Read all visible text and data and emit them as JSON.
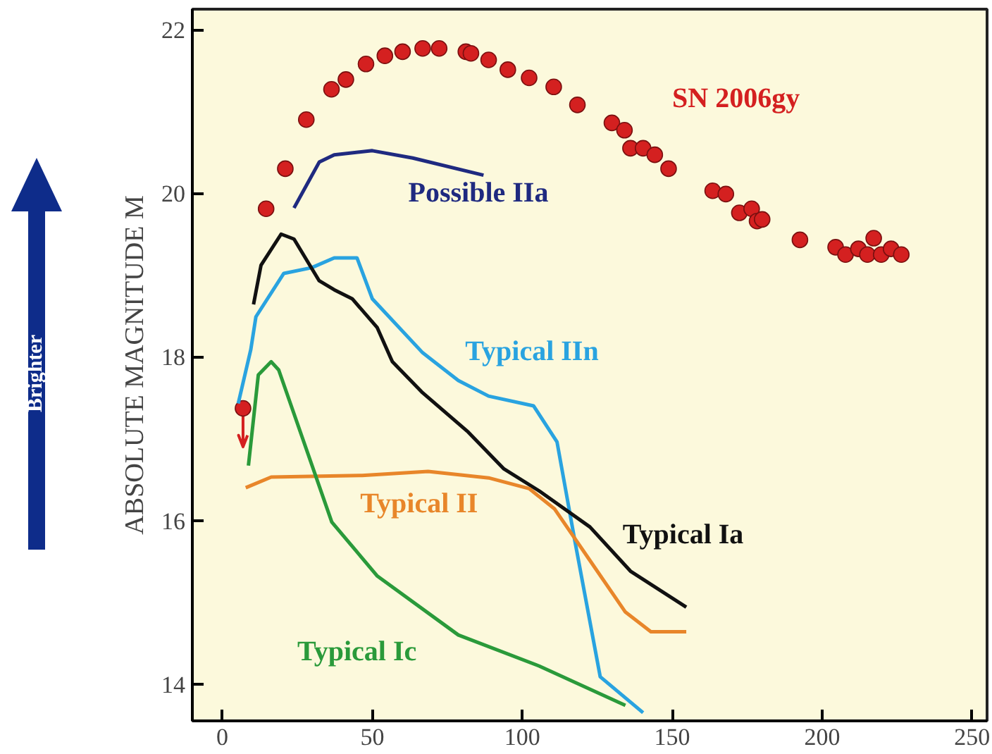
{
  "chart_data": {
    "type": "line",
    "ylabel": "ABSOLUTE MAGNITUDE M",
    "xlim": [
      -10,
      255
    ],
    "ylim": [
      13.55,
      22.25
    ],
    "xticks": [
      0,
      50,
      100,
      150,
      200,
      250
    ],
    "yticks": [
      14,
      16,
      18,
      20,
      22
    ],
    "grid": false,
    "line_style": "solid",
    "marker": "none",
    "annotations": [
      "Brighter"
    ],
    "series": [
      {
        "name": "SN 2006gy",
        "type": "scatter",
        "marker": "circle",
        "color": "#d42020",
        "x": [
          6.9,
          14.6,
          21,
          28,
          36.4,
          41.2,
          47.9,
          54.2,
          60.1,
          66.8,
          72.3,
          81.2,
          82.9,
          88.8,
          95.2,
          102.3,
          110.5,
          118.4,
          129.9,
          134.1,
          136.1,
          140.3,
          144.2,
          148.8,
          163.5,
          167.9,
          172.4,
          176.5,
          178.3,
          180,
          192.6,
          204.5,
          207.8,
          212.1,
          215.1,
          217.2,
          219.7,
          223,
          226.4
        ],
        "values": [
          17.37,
          19.81,
          20.3,
          20.9,
          21.27,
          21.39,
          21.58,
          21.68,
          21.73,
          21.77,
          21.77,
          21.73,
          21.71,
          21.63,
          21.51,
          21.41,
          21.3,
          21.08,
          20.86,
          20.77,
          20.55,
          20.55,
          20.47,
          20.3,
          20.03,
          19.99,
          19.76,
          19.81,
          19.66,
          19.68,
          19.43,
          19.34,
          19.25,
          19.32,
          19.25,
          19.45,
          19.25,
          19.32,
          19.25
        ],
        "errors": [
          [
            16.9,
            17.37
          ],
          null,
          null,
          null,
          null,
          null,
          null,
          null,
          null,
          null,
          null,
          null,
          null,
          null,
          null,
          null,
          null,
          null,
          null,
          null,
          null,
          null,
          null,
          null,
          null,
          null,
          null,
          null,
          null,
          null,
          null,
          null,
          null,
          null,
          null,
          null,
          null,
          null,
          null
        ]
      },
      {
        "name": "Possible IIa",
        "color": "#1f2a80",
        "x": [
          23.9,
          32.3,
          37.3,
          50,
          63.5,
          87.1
        ],
        "values": [
          19.82,
          20.38,
          20.47,
          20.52,
          20.43,
          20.22
        ]
      },
      {
        "name": "Typical IIn",
        "color": "#29a3e0",
        "x": [
          5.3,
          9.5,
          11.2,
          20.5,
          29.8,
          37.3,
          44.9,
          50,
          66.8,
          78.7,
          88.8,
          103.8,
          111.6,
          117.5,
          126,
          140.3
        ],
        "values": [
          17.43,
          18.09,
          18.49,
          19.02,
          19.09,
          19.21,
          19.21,
          18.71,
          18.05,
          17.71,
          17.52,
          17.4,
          16.96,
          15.76,
          14.09,
          13.65
        ]
      },
      {
        "name": "Typical Ia",
        "color": "#111111",
        "x": [
          10.4,
          12.9,
          19.6,
          23.9,
          32.3,
          37.3,
          43.3,
          51.6,
          56.7,
          66.8,
          82,
          93.9,
          105.7,
          122.6,
          136.1,
          154.7
        ],
        "values": [
          18.64,
          19.12,
          19.5,
          19.44,
          18.93,
          18.82,
          18.71,
          18.36,
          17.94,
          17.56,
          17.08,
          16.63,
          16.36,
          15.92,
          15.38,
          14.94
        ]
      },
      {
        "name": "Typical II",
        "color": "#e8862a",
        "x": [
          7.8,
          16.3,
          46.6,
          68.6,
          88.8,
          102.3,
          110.8,
          122.6,
          134.4,
          142.9,
          154.7
        ],
        "values": [
          16.4,
          16.53,
          16.55,
          16.6,
          16.52,
          16.39,
          16.14,
          15.51,
          14.88,
          14.64,
          14.64
        ]
      },
      {
        "name": "Typical Ic",
        "color": "#2a9a3a",
        "x": [
          8.7,
          12,
          16.3,
          18.8,
          36.5,
          51.7,
          78.7,
          105.7,
          134.4
        ],
        "values": [
          16.67,
          17.78,
          17.94,
          17.84,
          15.98,
          15.32,
          14.6,
          14.22,
          13.74
        ]
      }
    ]
  }
}
